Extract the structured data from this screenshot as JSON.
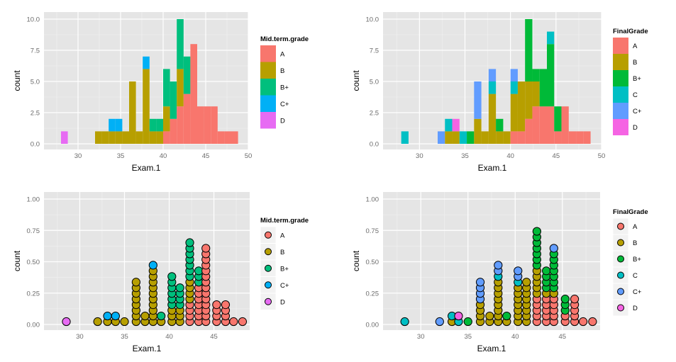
{
  "colors": {
    "A": "#F8766D",
    "B": "#B79F00",
    "B+": "#00BA38",
    "B+_5": "#00BF7D",
    "C": "#00BFC4",
    "C+": "#619CFF",
    "C+_5": "#00B0F6",
    "D": "#F564E3",
    "D_5": "#E76BF3",
    "panel": "#E5E5E5",
    "grid": "#F2F2F2"
  },
  "chart_data": [
    {
      "type": "bar",
      "subtype": "stacked-histogram",
      "xlabel": "Exam.1",
      "ylabel": "count",
      "xlim": [
        26,
        50
      ],
      "ylim": [
        0,
        10
      ],
      "xticks": [
        30,
        35,
        40,
        45,
        50
      ],
      "yticks": [
        "0.0",
        "2.5",
        "5.0",
        "7.5",
        "10.0"
      ],
      "legend_title": "Mid.term.grade",
      "legend_keys": [
        "A",
        "B",
        "B+",
        "C+",
        "D"
      ],
      "legend_placement": "right",
      "grid": true,
      "binwidth": 0.8,
      "bins": [
        {
          "x": 28.4,
          "stack": {
            "D": 1
          }
        },
        {
          "x": 32.4,
          "stack": {
            "B": 1
          }
        },
        {
          "x": 33.2,
          "stack": {
            "B": 1
          }
        },
        {
          "x": 34.0,
          "stack": {
            "B": 1,
            "C+": 1
          }
        },
        {
          "x": 34.8,
          "stack": {
            "B": 1,
            "C+": 1
          }
        },
        {
          "x": 35.6,
          "stack": {
            "B": 1
          }
        },
        {
          "x": 36.4,
          "stack": {
            "B": 5
          }
        },
        {
          "x": 37.2,
          "stack": {
            "B": 1
          }
        },
        {
          "x": 38.0,
          "stack": {
            "B": 6,
            "C+": 1
          }
        },
        {
          "x": 38.8,
          "stack": {
            "B": 1,
            "B+": 1
          }
        },
        {
          "x": 39.6,
          "stack": {
            "B": 1,
            "B+": 1
          }
        },
        {
          "x": 40.4,
          "stack": {
            "A": 1,
            "B": 2,
            "B+": 3
          }
        },
        {
          "x": 41.2,
          "stack": {
            "A": 2,
            "B+": 3
          }
        },
        {
          "x": 42.0,
          "stack": {
            "A": 3,
            "B": 3,
            "B+": 4
          }
        },
        {
          "x": 42.8,
          "stack": {
            "A": 4,
            "B+": 3
          }
        },
        {
          "x": 43.6,
          "stack": {
            "A": 8
          }
        },
        {
          "x": 44.4,
          "stack": {
            "A": 3
          }
        },
        {
          "x": 45.2,
          "stack": {
            "A": 3
          }
        },
        {
          "x": 46.0,
          "stack": {
            "A": 3
          }
        },
        {
          "x": 46.8,
          "stack": {
            "A": 1
          }
        },
        {
          "x": 47.6,
          "stack": {
            "A": 1
          }
        },
        {
          "x": 48.4,
          "stack": {
            "A": 1
          }
        }
      ]
    },
    {
      "type": "bar",
      "subtype": "stacked-histogram",
      "xlabel": "Exam.1",
      "ylabel": "count",
      "xlim": [
        26,
        50
      ],
      "ylim": [
        0,
        10
      ],
      "xticks": [
        30,
        35,
        40,
        45,
        50
      ],
      "yticks": [
        "0.0",
        "2.5",
        "5.0",
        "7.5",
        "10.0"
      ],
      "legend_title": "FinalGrade",
      "legend_keys": [
        "A",
        "B",
        "B+",
        "C",
        "C+",
        "D"
      ],
      "legend_placement": "right",
      "grid": true,
      "binwidth": 0.8,
      "bins": [
        {
          "x": 28.4,
          "stack": {
            "C": 1
          }
        },
        {
          "x": 32.4,
          "stack": {
            "C+": 1
          }
        },
        {
          "x": 33.2,
          "stack": {
            "B": 1,
            "C": 1
          }
        },
        {
          "x": 34.0,
          "stack": {
            "B": 1,
            "D": 1
          }
        },
        {
          "x": 34.8,
          "stack": {
            "C": 1
          }
        },
        {
          "x": 35.6,
          "stack": {
            "B+": 1
          }
        },
        {
          "x": 36.4,
          "stack": {
            "B": 2,
            "C+": 3
          }
        },
        {
          "x": 37.2,
          "stack": {
            "B": 1
          }
        },
        {
          "x": 38.0,
          "stack": {
            "B": 4,
            "C": 1,
            "C+": 1
          }
        },
        {
          "x": 38.8,
          "stack": {
            "B": 1,
            "B+": 1
          }
        },
        {
          "x": 39.6,
          "stack": {
            "B": 1
          }
        },
        {
          "x": 40.4,
          "stack": {
            "A": 1,
            "B": 3,
            "C": 1,
            "C+": 1
          }
        },
        {
          "x": 41.2,
          "stack": {
            "A": 1,
            "B": 4
          }
        },
        {
          "x": 42.0,
          "stack": {
            "A": 2,
            "B": 3,
            "B+": 5
          }
        },
        {
          "x": 42.8,
          "stack": {
            "A": 3,
            "B": 2,
            "B+": 1
          }
        },
        {
          "x": 43.6,
          "stack": {
            "A": 3,
            "B+": 3
          }
        },
        {
          "x": 44.4,
          "stack": {
            "A": 3,
            "B+": 5,
            "C": 1
          }
        },
        {
          "x": 45.2,
          "stack": {
            "A": 1,
            "B+": 2
          }
        },
        {
          "x": 46.0,
          "stack": {
            "A": 3
          }
        },
        {
          "x": 46.8,
          "stack": {
            "A": 1
          }
        },
        {
          "x": 47.6,
          "stack": {
            "A": 1
          }
        },
        {
          "x": 48.4,
          "stack": {
            "A": 1
          }
        }
      ]
    },
    {
      "type": "scatter",
      "subtype": "dotplot",
      "xlabel": "Exam.1",
      "ylabel": "count",
      "xlim": [
        26,
        49
      ],
      "ylim": [
        0,
        1
      ],
      "xticks": [
        30,
        35,
        40,
        45
      ],
      "yticks": [
        "0.00",
        "0.25",
        "0.50",
        "0.75",
        "1.00"
      ],
      "legend_title": "Mid.term.grade",
      "legend_keys": [
        "A",
        "B",
        "B+",
        "C+",
        "D"
      ],
      "legend_placement": "right",
      "grid": true,
      "dot_step": 0.045,
      "columns": [
        {
          "x": 28.5,
          "stack": [
            "D"
          ]
        },
        {
          "x": 32.0,
          "stack": [
            "B"
          ]
        },
        {
          "x": 33.1,
          "stack": [
            "B",
            "C+"
          ]
        },
        {
          "x": 34.0,
          "stack": [
            "B",
            "C+"
          ]
        },
        {
          "x": 35.0,
          "stack": [
            "B"
          ]
        },
        {
          "x": 36.3,
          "stack": [
            "B",
            "B",
            "B",
            "B",
            "B",
            "B",
            "B",
            "B"
          ]
        },
        {
          "x": 37.3,
          "stack": [
            "B",
            "B"
          ]
        },
        {
          "x": 38.2,
          "stack": [
            "B",
            "B",
            "B",
            "B",
            "B",
            "B",
            "B",
            "B",
            "B",
            "B",
            "C+"
          ]
        },
        {
          "x": 39.1,
          "stack": [
            "B",
            "B+"
          ]
        },
        {
          "x": 40.3,
          "stack": [
            "B",
            "B",
            "B",
            "B+",
            "B+",
            "B+",
            "B+",
            "B+",
            "B+"
          ]
        },
        {
          "x": 41.2,
          "stack": [
            "B",
            "B",
            "B",
            "B+",
            "B+",
            "B+",
            "B+"
          ]
        },
        {
          "x": 42.3,
          "stack": [
            "A",
            "A",
            "A",
            "A",
            "B",
            "B",
            "B",
            "B",
            "B+",
            "B+",
            "B+",
            "B+",
            "B+",
            "B+",
            "B+"
          ]
        },
        {
          "x": 43.3,
          "stack": [
            "A",
            "A",
            "A",
            "A",
            "A",
            "A",
            "A",
            "B+",
            "B+",
            "B+"
          ]
        },
        {
          "x": 44.1,
          "stack": [
            "A",
            "A",
            "A",
            "A",
            "A",
            "A",
            "A",
            "A",
            "A",
            "A",
            "A",
            "A",
            "A",
            "A"
          ]
        },
        {
          "x": 45.3,
          "stack": [
            "A",
            "A",
            "A",
            "A"
          ]
        },
        {
          "x": 46.3,
          "stack": [
            "A",
            "A",
            "A",
            "A"
          ]
        },
        {
          "x": 47.2,
          "stack": [
            "A"
          ]
        },
        {
          "x": 48.2,
          "stack": [
            "A"
          ]
        }
      ]
    },
    {
      "type": "scatter",
      "subtype": "dotplot",
      "xlabel": "Exam.1",
      "ylabel": "count",
      "xlim": [
        26,
        49
      ],
      "ylim": [
        0,
        1
      ],
      "xticks": [
        30,
        35,
        40,
        45
      ],
      "yticks": [
        "0.00",
        "0.25",
        "0.50",
        "0.75",
        "1.00"
      ],
      "legend_title": "FinalGrade",
      "legend_keys": [
        "A",
        "B",
        "B+",
        "C",
        "C+",
        "D"
      ],
      "legend_placement": "right",
      "grid": true,
      "dot_step": 0.045,
      "columns": [
        {
          "x": 28.3,
          "stack": [
            "C"
          ]
        },
        {
          "x": 32.0,
          "stack": [
            "C+"
          ]
        },
        {
          "x": 33.3,
          "stack": [
            "B",
            "C"
          ]
        },
        {
          "x": 34.0,
          "stack": [
            "C",
            "D"
          ]
        },
        {
          "x": 35.0,
          "stack": [
            "B+"
          ]
        },
        {
          "x": 36.3,
          "stack": [
            "B",
            "B",
            "B",
            "B",
            "C+",
            "C+",
            "C+",
            "C+"
          ]
        },
        {
          "x": 37.3,
          "stack": [
            "B",
            "B"
          ]
        },
        {
          "x": 38.2,
          "stack": [
            "B",
            "B",
            "B",
            "B",
            "B",
            "B",
            "B",
            "B",
            "C",
            "C+",
            "C+"
          ]
        },
        {
          "x": 39.1,
          "stack": [
            "B",
            "B+"
          ]
        },
        {
          "x": 40.3,
          "stack": [
            "B",
            "B",
            "B",
            "B",
            "B",
            "B",
            "B",
            "C",
            "C+",
            "C+"
          ]
        },
        {
          "x": 41.2,
          "stack": [
            "B",
            "B",
            "B",
            "B",
            "B",
            "B",
            "B",
            "B"
          ]
        },
        {
          "x": 42.3,
          "stack": [
            "A",
            "A",
            "A",
            "A",
            "A",
            "B",
            "B",
            "B",
            "B",
            "B",
            "B+",
            "B+",
            "B+",
            "B+",
            "B+",
            "B+",
            "B+"
          ]
        },
        {
          "x": 43.3,
          "stack": [
            "A",
            "A",
            "A",
            "A",
            "A",
            "B",
            "B+",
            "B+",
            "B+",
            "B+"
          ]
        },
        {
          "x": 44.1,
          "stack": [
            "A",
            "A",
            "A",
            "A",
            "A",
            "B",
            "B+",
            "B+",
            "B+",
            "B+",
            "B+",
            "B+",
            "B+",
            "C+"
          ]
        },
        {
          "x": 45.3,
          "stack": [
            "A",
            "A",
            "B+",
            "B+",
            "B+"
          ]
        },
        {
          "x": 46.3,
          "stack": [
            "A",
            "A",
            "A",
            "A",
            "A"
          ]
        },
        {
          "x": 47.2,
          "stack": [
            "A"
          ]
        },
        {
          "x": 48.2,
          "stack": [
            "A"
          ]
        }
      ]
    }
  ]
}
